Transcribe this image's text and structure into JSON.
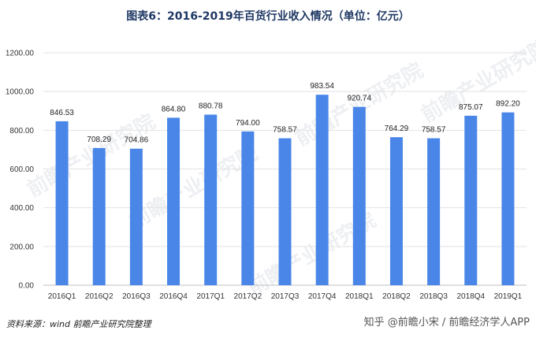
{
  "chart_data": {
    "type": "bar",
    "title": "图表6：2016-2019年百货行业收入情况（单位：亿元）",
    "categories": [
      "2016Q1",
      "2016Q2",
      "2016Q3",
      "2016Q4",
      "2017Q1",
      "2017Q2",
      "2017Q3",
      "2017Q4",
      "2018Q1",
      "2018Q2",
      "2018Q3",
      "2018Q4",
      "2019Q1"
    ],
    "values": [
      846.53,
      708.29,
      704.86,
      864.8,
      880.78,
      794.0,
      758.57,
      983.54,
      920.74,
      764.29,
      758.57,
      875.07,
      892.2
    ],
    "value_labels": [
      "846.53",
      "708.29",
      "704.86",
      "864.80",
      "880.78",
      "794.00",
      "758.57",
      "983.54",
      "920.74",
      "764.29",
      "758.57",
      "875.07",
      "892.20"
    ],
    "yticks": [
      "0.00",
      "200.00",
      "400.00",
      "600.00",
      "800.00",
      "1000.00",
      "1200.00"
    ],
    "ylim": [
      0,
      1200
    ],
    "xlabel": "",
    "ylabel": "",
    "bar_color": "#4a86e8",
    "grid": true
  },
  "footer": {
    "source": "资料来源：wind 前瞻产业研究院整理",
    "brand": "知乎 @前瞻小宋 / 前瞻经济学人APP"
  },
  "watermark": {
    "text": "前瞻产业研究院"
  }
}
